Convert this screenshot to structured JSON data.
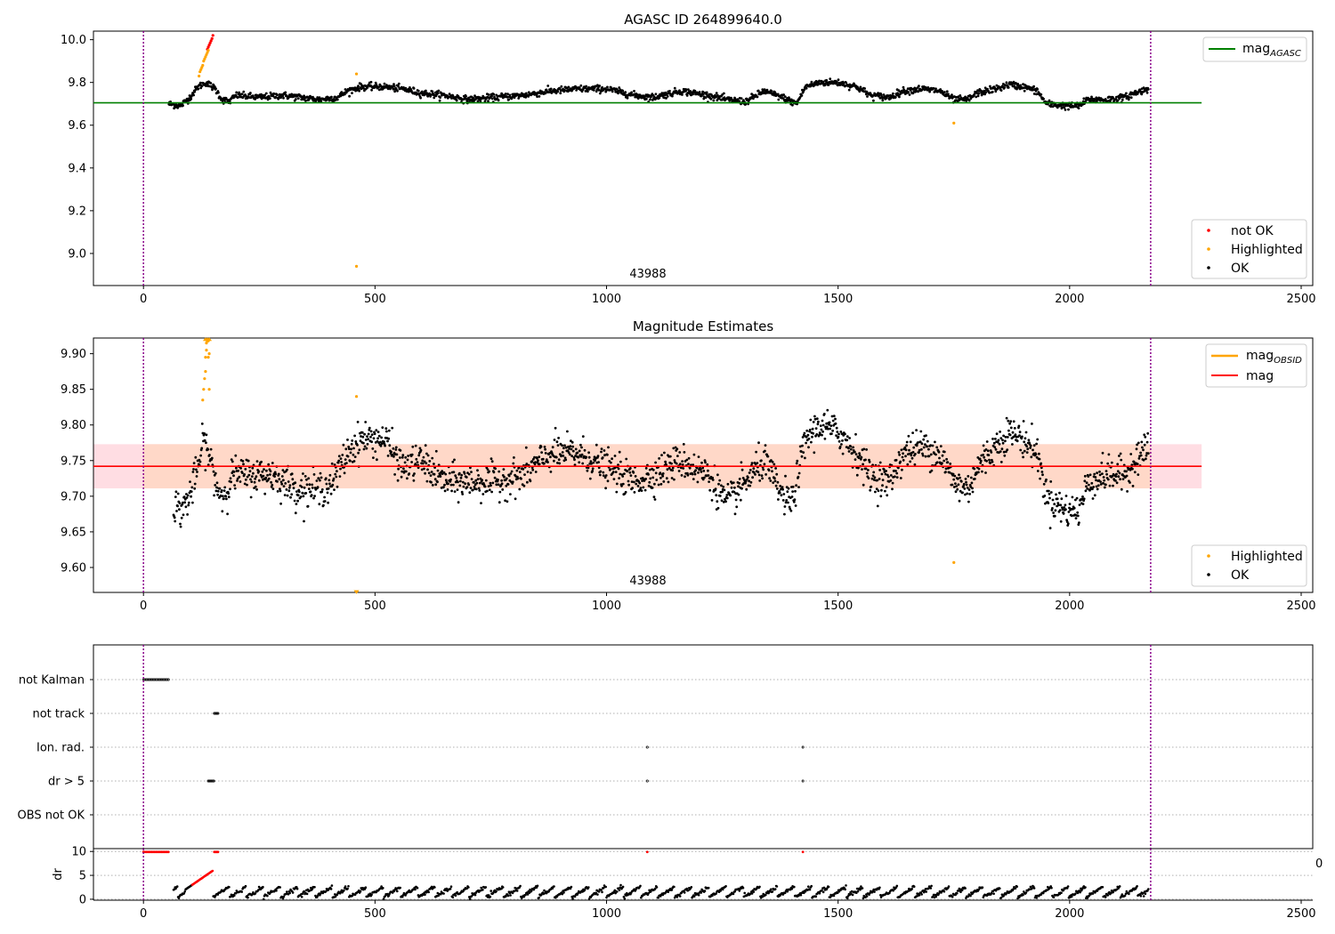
{
  "chart_data": [
    {
      "type": "scatter",
      "title": "AGASC ID 264899640.0",
      "annotation": "43988",
      "xlim": [
        -108,
        2525
      ],
      "ylim": [
        8.85,
        10.04
      ],
      "xticks": [
        0,
        500,
        1000,
        1500,
        2000,
        2500
      ],
      "yticks": [
        9.0,
        9.2,
        9.4,
        9.6,
        9.8,
        10.0
      ],
      "ytick_labels": [
        "9.0",
        "9.2",
        "9.4",
        "9.6",
        "9.8",
        "10.0"
      ],
      "vlines": [
        0,
        2175
      ],
      "hline": {
        "y": 9.705,
        "x": [
          -108,
          2285
        ],
        "color": "#008000"
      },
      "line_legend": {
        "placement": "top-right",
        "entries": [
          {
            "label": "mag",
            "sub": "AGASC",
            "color": "#008000"
          }
        ]
      },
      "legend": {
        "placement": "bottom-right",
        "entries": [
          {
            "label": "not OK",
            "color": "#ff0000"
          },
          {
            "label": "Highlighted",
            "color": "#ffa500"
          },
          {
            "label": "OK",
            "color": "#000000"
          }
        ]
      },
      "series": [
        {
          "name": "OK",
          "color": "#000000",
          "base": [
            [
              55,
              9.7
            ],
            [
              80,
              9.69
            ],
            [
              100,
              9.73
            ],
            [
              118,
              9.78
            ],
            [
              135,
              9.8
            ],
            [
              155,
              9.77
            ],
            [
              170,
              9.72
            ],
            [
              185,
              9.71
            ],
            [
              200,
              9.74
            ],
            [
              250,
              9.73
            ],
            [
              300,
              9.74
            ],
            [
              340,
              9.73
            ],
            [
              380,
              9.72
            ],
            [
              420,
              9.73
            ],
            [
              440,
              9.76
            ],
            [
              470,
              9.78
            ],
            [
              520,
              9.78
            ],
            [
              560,
              9.77
            ],
            [
              600,
              9.75
            ],
            [
              650,
              9.74
            ],
            [
              700,
              9.72
            ],
            [
              760,
              9.73
            ],
            [
              820,
              9.74
            ],
            [
              880,
              9.76
            ],
            [
              940,
              9.77
            ],
            [
              1000,
              9.77
            ],
            [
              1060,
              9.74
            ],
            [
              1100,
              9.73
            ],
            [
              1160,
              9.76
            ],
            [
              1220,
              9.74
            ],
            [
              1260,
              9.72
            ],
            [
              1300,
              9.71
            ],
            [
              1340,
              9.76
            ],
            [
              1380,
              9.73
            ],
            [
              1410,
              9.7
            ],
            [
              1430,
              9.78
            ],
            [
              1460,
              9.8
            ],
            [
              1500,
              9.8
            ],
            [
              1540,
              9.78
            ],
            [
              1570,
              9.74
            ],
            [
              1610,
              9.73
            ],
            [
              1640,
              9.76
            ],
            [
              1680,
              9.77
            ],
            [
              1720,
              9.76
            ],
            [
              1750,
              9.72
            ],
            [
              1780,
              9.72
            ],
            [
              1800,
              9.75
            ],
            [
              1840,
              9.77
            ],
            [
              1870,
              9.79
            ],
            [
              1900,
              9.78
            ],
            [
              1930,
              9.76
            ],
            [
              1950,
              9.7
            ],
            [
              1990,
              9.69
            ],
            [
              2020,
              9.69
            ],
            [
              2040,
              9.72
            ],
            [
              2080,
              9.72
            ],
            [
              2120,
              9.73
            ],
            [
              2140,
              9.75
            ],
            [
              2170,
              9.77
            ]
          ],
          "x_range": [
            55,
            2170
          ],
          "n": 1900,
          "noise": 0.008
        },
        {
          "name": "not OK",
          "color": "#ff0000",
          "x": [
            138,
            140,
            142,
            144,
            146,
            148,
            150
          ],
          "y": [
            9.955,
            9.965,
            9.975,
            9.985,
            9.995,
            10.005,
            10.02
          ]
        },
        {
          "name": "Highlighted",
          "color": "#ffa500",
          "x": [
            120,
            122,
            124,
            126,
            128,
            130,
            132,
            134,
            136,
            138,
            140,
            460,
            460,
            1750
          ],
          "y": [
            9.83,
            9.85,
            9.86,
            9.87,
            9.88,
            9.9,
            9.91,
            9.92,
            9.93,
            9.94,
            9.95,
            9.84,
            8.94,
            9.61
          ]
        }
      ]
    },
    {
      "type": "scatter",
      "title": "Magnitude Estimates",
      "annotation": "43988",
      "xlim": [
        -108,
        2525
      ],
      "ylim": [
        9.565,
        9.922
      ],
      "xticks": [
        0,
        500,
        1000,
        1500,
        2000,
        2500
      ],
      "yticks": [
        9.6,
        9.65,
        9.7,
        9.75,
        9.8,
        9.85,
        9.9
      ],
      "ytick_labels": [
        "9.60",
        "9.65",
        "9.70",
        "9.75",
        "9.80",
        "9.85",
        "9.90"
      ],
      "vlines": [
        0,
        2175
      ],
      "hline": {
        "y": 9.742,
        "x": [
          -108,
          2285
        ],
        "color": "#ff0000"
      },
      "band_outer": {
        "y": [
          9.711,
          9.773
        ],
        "x": [
          -108,
          2285
        ],
        "color": "#ffdde3"
      },
      "band_inner": {
        "y": [
          9.711,
          9.773
        ],
        "x": [
          0,
          2175
        ],
        "color": "#ffd8c8"
      },
      "line_legend": {
        "placement": "top-right",
        "entries": [
          {
            "label": "mag",
            "sub": "OBSID",
            "color": "#ffa500"
          },
          {
            "label": "mag",
            "color": "#ff0000"
          }
        ]
      },
      "legend": {
        "placement": "bottom-right",
        "entries": [
          {
            "label": "Highlighted",
            "color": "#ffa500"
          },
          {
            "label": "OK",
            "color": "#000000"
          }
        ]
      },
      "series": [
        {
          "name": "OK",
          "color": "#000000",
          "base": [
            [
              65,
              9.69
            ],
            [
              80,
              9.68
            ],
            [
              100,
              9.7
            ],
            [
              118,
              9.74
            ],
            [
              130,
              9.78
            ],
            [
              145,
              9.75
            ],
            [
              160,
              9.71
            ],
            [
              175,
              9.7
            ],
            [
              190,
              9.73
            ],
            [
              230,
              9.73
            ],
            [
              280,
              9.73
            ],
            [
              330,
              9.71
            ],
            [
              380,
              9.71
            ],
            [
              410,
              9.72
            ],
            [
              440,
              9.76
            ],
            [
              470,
              9.78
            ],
            [
              520,
              9.78
            ],
            [
              560,
              9.74
            ],
            [
              600,
              9.75
            ],
            [
              650,
              9.72
            ],
            [
              700,
              9.72
            ],
            [
              760,
              9.72
            ],
            [
              820,
              9.73
            ],
            [
              880,
              9.76
            ],
            [
              940,
              9.76
            ],
            [
              1000,
              9.74
            ],
            [
              1060,
              9.72
            ],
            [
              1100,
              9.73
            ],
            [
              1160,
              9.75
            ],
            [
              1220,
              9.73
            ],
            [
              1260,
              9.69
            ],
            [
              1300,
              9.72
            ],
            [
              1340,
              9.75
            ],
            [
              1380,
              9.7
            ],
            [
              1400,
              9.69
            ],
            [
              1430,
              9.78
            ],
            [
              1460,
              9.8
            ],
            [
              1500,
              9.79
            ],
            [
              1540,
              9.76
            ],
            [
              1570,
              9.73
            ],
            [
              1610,
              9.72
            ],
            [
              1640,
              9.76
            ],
            [
              1680,
              9.77
            ],
            [
              1720,
              9.76
            ],
            [
              1750,
              9.72
            ],
            [
              1780,
              9.71
            ],
            [
              1800,
              9.74
            ],
            [
              1840,
              9.77
            ],
            [
              1870,
              9.79
            ],
            [
              1900,
              9.78
            ],
            [
              1930,
              9.76
            ],
            [
              1950,
              9.7
            ],
            [
              1990,
              9.68
            ],
            [
              2020,
              9.68
            ],
            [
              2040,
              9.72
            ],
            [
              2080,
              9.73
            ],
            [
              2120,
              9.73
            ],
            [
              2140,
              9.75
            ],
            [
              2170,
              9.77
            ]
          ],
          "x_range": [
            65,
            2170
          ],
          "n": 1900,
          "noise": 0.012
        },
        {
          "name": "Highlighted",
          "color": "#ffa500",
          "x": [
            128,
            130,
            132,
            134,
            134,
            136,
            136,
            138,
            138,
            140,
            140,
            142,
            142,
            460,
            1750
          ],
          "y": [
            9.835,
            9.85,
            9.865,
            9.875,
            9.895,
            9.905,
            9.915,
            9.918,
            9.918,
            9.918,
            9.895,
            9.9,
            9.85,
            9.84,
            9.607
          ]
        },
        {
          "name": "Highlighted (off-scale)",
          "color": "#ffa500",
          "marker": "triangle",
          "x": [
            134,
            138,
            142,
            460,
            460
          ],
          "y": [
            9.918,
            9.918,
            9.918,
            9.568,
            9.568
          ]
        }
      ]
    },
    {
      "type": "scatter",
      "title": "",
      "xlim": [
        -108,
        2525
      ],
      "xticks": [
        0,
        500,
        1000,
        1500,
        2000,
        2500
      ],
      "vlines": [
        0,
        2175
      ],
      "flag_rows": [
        "not Kalman",
        "not track",
        "Ion. rad.",
        "dr > 5",
        "OBS not OK"
      ],
      "flags": [
        {
          "row": "not Kalman",
          "x": [
            0,
            3,
            6,
            9,
            12,
            15,
            18,
            21,
            24,
            27,
            30,
            33,
            36,
            39,
            42,
            45,
            48,
            51,
            54
          ]
        },
        {
          "row": "not track",
          "x": [
            153,
            155,
            157,
            159,
            161
          ]
        },
        {
          "row": "Ion. rad.",
          "x": [
            1088,
            1424
          ]
        },
        {
          "row": "dr > 5",
          "x": [
            140,
            142,
            144,
            146,
            148,
            150,
            152,
            1088,
            1424
          ]
        },
        {
          "row": "OBS not OK",
          "x": []
        }
      ],
      "dr_panel": {
        "ylabel": "dr",
        "ylim": [
          -0.2,
          10.6
        ],
        "yticks": [
          0,
          5,
          10
        ],
        "extra_tick_label": "0",
        "ok_color": "#000000",
        "bad_color": "#ff0000",
        "threshold": 3.0,
        "x_range": [
          65,
          2170
        ],
        "n": 1300,
        "bad_x": [
          0,
          3,
          6,
          9,
          12,
          15,
          18,
          21,
          24,
          27,
          30,
          33,
          36,
          39,
          42,
          45,
          48,
          51,
          54,
          153,
          155,
          157,
          159,
          161,
          1088,
          1424
        ],
        "bad_y": [
          9.9,
          9.9,
          9.9,
          9.9,
          9.9,
          9.9,
          9.9,
          9.9,
          9.9,
          9.9,
          9.9,
          9.9,
          9.9,
          9.9,
          9.9,
          9.9,
          9.9,
          9.9,
          9.9,
          9.9,
          9.9,
          9.9,
          9.9,
          9.9,
          9.9,
          9.9
        ]
      }
    }
  ]
}
